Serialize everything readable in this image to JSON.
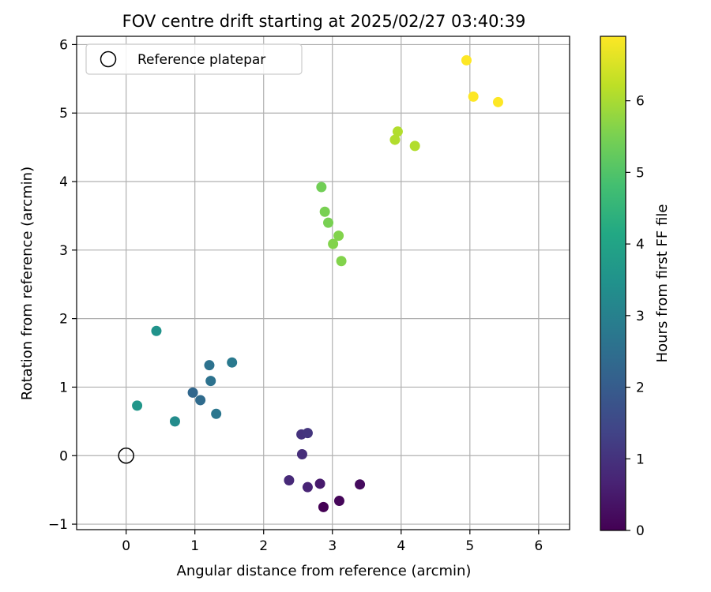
{
  "chart_data": {
    "type": "scatter",
    "title": "FOV centre drift starting at 2025/02/27 03:40:39",
    "xlabel": "Angular distance from reference (arcmin)",
    "ylabel": "Rotation from reference (arcmin)",
    "xlim": [
      -0.72,
      6.45
    ],
    "ylim": [
      -1.08,
      6.12
    ],
    "xticks": [
      0,
      1,
      2,
      3,
      4,
      5,
      6
    ],
    "xtick_labels": [
      "0",
      "1",
      "2",
      "3",
      "4",
      "5",
      "6"
    ],
    "yticks": [
      -1,
      0,
      1,
      2,
      3,
      4,
      5,
      6
    ],
    "ytick_labels": [
      "−1",
      "0",
      "1",
      "2",
      "3",
      "4",
      "5",
      "6"
    ],
    "grid": true,
    "colormap": "viridis",
    "colorbar": {
      "label": "Hours from first FF file",
      "range": [
        0,
        6.9
      ],
      "ticks": [
        0,
        1,
        2,
        3,
        4,
        5,
        6
      ],
      "tick_labels": [
        "0",
        "1",
        "2",
        "3",
        "4",
        "5",
        "6"
      ]
    },
    "legend": {
      "placement": "upper-left",
      "entries": [
        {
          "label": "Reference platepar",
          "marker": "open-circle"
        }
      ]
    },
    "reference_point": {
      "x": 0,
      "y": 0
    },
    "points": [
      {
        "x": 2.87,
        "y": -0.75,
        "hours": 0.0
      },
      {
        "x": 3.1,
        "y": -0.66,
        "hours": 0.1
      },
      {
        "x": 3.4,
        "y": -0.42,
        "hours": 0.2
      },
      {
        "x": 2.82,
        "y": -0.41,
        "hours": 0.5
      },
      {
        "x": 2.64,
        "y": -0.46,
        "hours": 0.7
      },
      {
        "x": 2.37,
        "y": -0.36,
        "hours": 0.8
      },
      {
        "x": 2.56,
        "y": 0.02,
        "hours": 0.9
      },
      {
        "x": 2.55,
        "y": 0.31,
        "hours": 1.0
      },
      {
        "x": 2.64,
        "y": 0.33,
        "hours": 1.05
      },
      {
        "x": 0.97,
        "y": 0.92,
        "hours": 2.3
      },
      {
        "x": 1.08,
        "y": 0.81,
        "hours": 2.4
      },
      {
        "x": 1.23,
        "y": 1.09,
        "hours": 2.6
      },
      {
        "x": 1.21,
        "y": 1.32,
        "hours": 2.6
      },
      {
        "x": 1.31,
        "y": 0.61,
        "hours": 2.7
      },
      {
        "x": 1.54,
        "y": 1.36,
        "hours": 2.8
      },
      {
        "x": 0.71,
        "y": 0.5,
        "hours": 3.3
      },
      {
        "x": 0.44,
        "y": 1.82,
        "hours": 3.5
      },
      {
        "x": 0.16,
        "y": 0.73,
        "hours": 3.6
      },
      {
        "x": 2.84,
        "y": 3.92,
        "hours": 5.4
      },
      {
        "x": 2.89,
        "y": 3.56,
        "hours": 5.5
      },
      {
        "x": 2.94,
        "y": 3.4,
        "hours": 5.5
      },
      {
        "x": 3.09,
        "y": 3.21,
        "hours": 5.6
      },
      {
        "x": 3.01,
        "y": 3.09,
        "hours": 5.6
      },
      {
        "x": 3.13,
        "y": 2.84,
        "hours": 5.6
      },
      {
        "x": 3.91,
        "y": 4.61,
        "hours": 6.1
      },
      {
        "x": 3.95,
        "y": 4.73,
        "hours": 6.1
      },
      {
        "x": 4.2,
        "y": 4.52,
        "hours": 6.1
      },
      {
        "x": 4.95,
        "y": 5.77,
        "hours": 6.9
      },
      {
        "x": 5.05,
        "y": 5.24,
        "hours": 6.9
      },
      {
        "x": 5.41,
        "y": 5.16,
        "hours": 6.9
      }
    ]
  }
}
